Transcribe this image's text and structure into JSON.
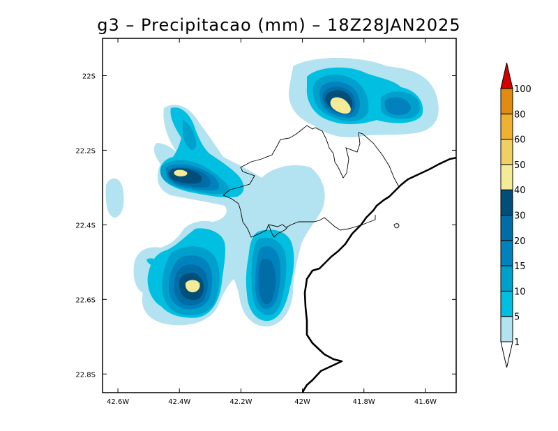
{
  "chart_data": {
    "type": "heatmap",
    "title": "g3 – Precipitacao (mm) – 18Z28JAN2025",
    "xlabel": "",
    "ylabel": "",
    "xlim": [
      -42.65,
      -41.5
    ],
    "ylim": [
      -22.85,
      -21.9
    ],
    "x_ticks": [
      {
        "value": -42.6,
        "label": "42.6W"
      },
      {
        "value": -42.4,
        "label": "42.4W"
      },
      {
        "value": -42.2,
        "label": "42.2W"
      },
      {
        "value": -42.0,
        "label": "42W"
      },
      {
        "value": -41.8,
        "label": "41.8W"
      },
      {
        "value": -41.6,
        "label": "41.6W"
      }
    ],
    "y_ticks": [
      {
        "value": -22.0,
        "label": "22S"
      },
      {
        "value": -22.2,
        "label": "22.2S"
      },
      {
        "value": -22.4,
        "label": "22.4S"
      },
      {
        "value": -22.6,
        "label": "22.6S"
      },
      {
        "value": -22.8,
        "label": "22.8S"
      }
    ],
    "colorbar": {
      "levels": [
        "1",
        "5",
        "10",
        "15",
        "20",
        "30",
        "40",
        "50",
        "60",
        "80",
        "100"
      ],
      "colors": [
        "#b3e2f0",
        "#00bfe0",
        "#00a0cc",
        "#0082bf",
        "#006ea6",
        "#004f7a",
        "#f5eb96",
        "#f0d060",
        "#f0b030",
        "#e08c10",
        "#d40000"
      ]
    },
    "precip_cells": [
      {
        "name": "northeast",
        "lon": -41.88,
        "lat": -22.07,
        "peak_mm": 45
      },
      {
        "name": "west",
        "lon": -42.4,
        "lat": -22.26,
        "peak_mm": 42
      },
      {
        "name": "southwest",
        "lon": -42.38,
        "lat": -22.57,
        "peak_mm": 44
      },
      {
        "name": "south-central",
        "lon": -42.12,
        "lat": -22.54,
        "peak_mm": 25
      }
    ]
  },
  "colors": {
    "coastline": "#000000",
    "boundaries": "#000000",
    "frame": "#000000"
  }
}
